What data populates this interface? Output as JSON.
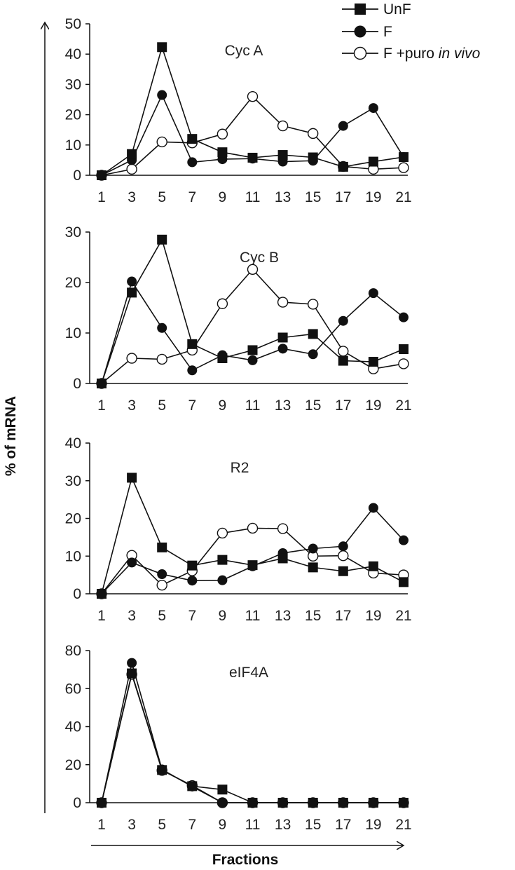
{
  "figure": {
    "ylabel": "% of mRNA",
    "xlabel": "Fractions",
    "legend": [
      {
        "label": "UnF",
        "marker": "square-filled"
      },
      {
        "label": "F",
        "marker": "circle-filled"
      },
      {
        "label_prefix": "F +puro ",
        "label_italic": "in vivo",
        "marker": "circle-open"
      }
    ]
  },
  "chart_data": [
    {
      "type": "line",
      "title": "Cyc A",
      "x": [
        1,
        3,
        5,
        7,
        9,
        11,
        13,
        15,
        17,
        19,
        21
      ],
      "ylim": [
        0,
        50
      ],
      "yticks": [
        0,
        10,
        20,
        30,
        40,
        50
      ],
      "series": [
        {
          "name": "UnF",
          "values": [
            0,
            7,
            42.3,
            12,
            7.6,
            5.8,
            6.7,
            5.9,
            2.8,
            4.5,
            6
          ]
        },
        {
          "name": "F",
          "values": [
            0,
            5,
            26.5,
            4.3,
            5.3,
            5.5,
            4.5,
            4.8,
            16.3,
            22.2,
            6
          ]
        },
        {
          "name": "F +puro in vivo",
          "values": [
            0,
            2,
            11,
            10.7,
            13.6,
            26,
            16.3,
            13.8,
            2.9,
            2,
            2.5
          ]
        }
      ]
    },
    {
      "type": "line",
      "title": "Cyc B",
      "x": [
        1,
        3,
        5,
        7,
        9,
        11,
        13,
        15,
        17,
        19,
        21
      ],
      "ylim": [
        0,
        30
      ],
      "yticks": [
        0,
        10,
        20,
        30
      ],
      "series": [
        {
          "name": "UnF",
          "values": [
            0,
            18,
            28.5,
            7.8,
            5,
            6.6,
            9.1,
            9.8,
            4.5,
            4.3,
            6.8
          ]
        },
        {
          "name": "F",
          "values": [
            0,
            20.2,
            11,
            2.6,
            5.6,
            4.6,
            6.9,
            5.8,
            12.4,
            17.9,
            13.1
          ]
        },
        {
          "name": "F +puro in vivo",
          "values": [
            0,
            5,
            4.8,
            6.6,
            15.8,
            22.6,
            16.1,
            15.7,
            6.4,
            2.9,
            3.9
          ]
        }
      ]
    },
    {
      "type": "line",
      "title": "R2",
      "x": [
        1,
        3,
        5,
        7,
        9,
        11,
        13,
        15,
        17,
        19,
        21
      ],
      "ylim": [
        0,
        40
      ],
      "yticks": [
        0,
        10,
        20,
        30,
        40
      ],
      "series": [
        {
          "name": "UnF",
          "values": [
            0,
            30.8,
            12.3,
            7.5,
            9,
            7.6,
            9.4,
            7,
            6,
            7.3,
            3.1
          ]
        },
        {
          "name": "F",
          "values": [
            0,
            8.3,
            5.2,
            3.5,
            3.6,
            7.3,
            10.8,
            12,
            12.6,
            22.8,
            14.2
          ]
        },
        {
          "name": "F +puro in vivo",
          "values": [
            0,
            10.2,
            2.3,
            6.1,
            16.1,
            17.4,
            17.3,
            10,
            10.1,
            5.5,
            5
          ]
        }
      ]
    },
    {
      "type": "line",
      "title": "eIF4A",
      "x": [
        1,
        3,
        5,
        7,
        9,
        11,
        13,
        15,
        17,
        19,
        21
      ],
      "ylim": [
        0,
        80
      ],
      "yticks": [
        0,
        20,
        40,
        60,
        80
      ],
      "series": [
        {
          "name": "UnF",
          "values": [
            0,
            68,
            17.2,
            8.7,
            6.9,
            0,
            0,
            0,
            0,
            0,
            0
          ]
        },
        {
          "name": "F",
          "values": [
            0,
            73.5,
            17.5,
            8.5,
            0,
            0,
            0,
            0,
            0,
            0,
            0
          ]
        },
        {
          "name": "F +puro in vivo",
          "values": [
            0,
            67.5,
            17,
            9,
            0,
            0,
            0,
            0,
            0,
            0,
            0
          ]
        }
      ]
    }
  ]
}
